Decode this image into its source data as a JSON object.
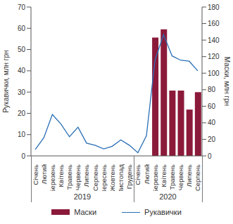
{
  "chart_data": {
    "type": "combo",
    "categories": [
      "Січень",
      "Лютий",
      "Березень",
      "Квітень",
      "Травень",
      "Червень",
      "Липень",
      "Серпень",
      "Вересень",
      "Жовтень",
      "Листопад",
      "Грудень",
      "Січень",
      "Лютий",
      "Березень",
      "Квітень",
      "Травень",
      "Червень",
      "Липень",
      "Серпень"
    ],
    "category_groups": [
      "2019",
      "2019",
      "2019",
      "2019",
      "2019",
      "2019",
      "2019",
      "2019",
      "2019",
      "2019",
      "2019",
      "2019",
      "2020",
      "2020",
      "2020",
      "2020",
      "2020",
      "2020",
      "2020",
      "2020"
    ],
    "y_label": "Рукавички, млн грн",
    "y2_label": "Маски, млн грн",
    "ylim": [
      0,
      70
    ],
    "yticks": [
      0,
      10,
      20,
      30,
      40,
      50,
      60,
      70
    ],
    "y2lim": [
      0,
      180
    ],
    "y2ticks": [
      0,
      20,
      40,
      60,
      80,
      100,
      120,
      140,
      160,
      180
    ],
    "legend": "bottom",
    "series": [
      {
        "name": "Маски",
        "type": "bar",
        "axis": "y2",
        "color": "#8b1a3a",
        "values": [
          null,
          null,
          null,
          null,
          null,
          null,
          null,
          null,
          null,
          null,
          null,
          null,
          null,
          null,
          143,
          153,
          79,
          79,
          56,
          77
        ]
      },
      {
        "name": "Рукавички",
        "type": "line",
        "axis": "y",
        "color": "#2a6fb5",
        "values": [
          3,
          8.5,
          19.5,
          15,
          9,
          13.5,
          6,
          5,
          3.3,
          4.5,
          7.5,
          5,
          1.5,
          9.5,
          45,
          57,
          47,
          45,
          44.5,
          40
        ]
      }
    ]
  }
}
